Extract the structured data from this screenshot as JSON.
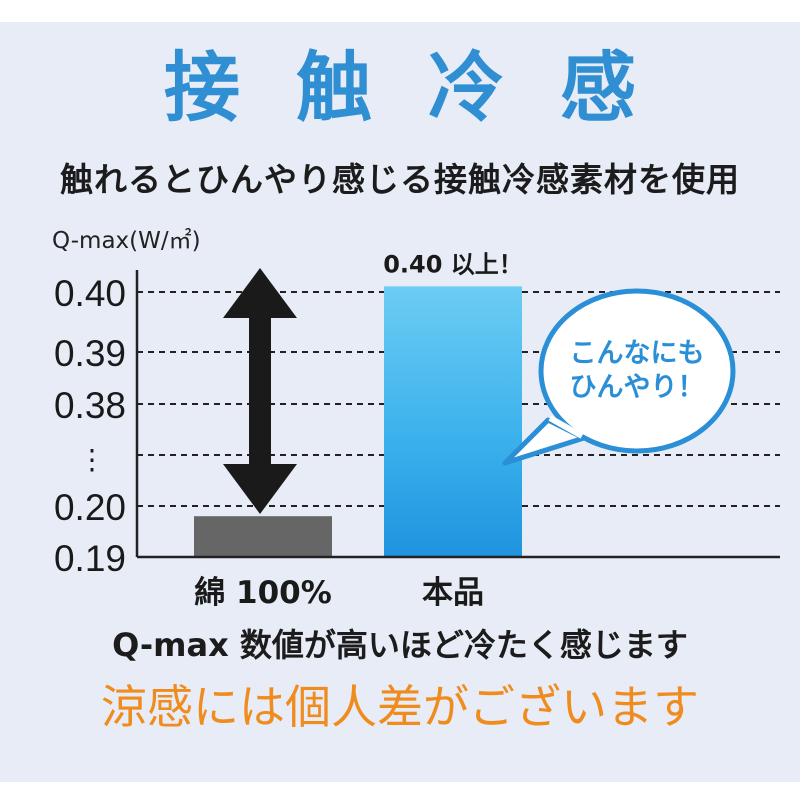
{
  "header": {
    "title": "接触冷感",
    "subtitle": "触れるとひんやり感じる接触冷感素材を使用"
  },
  "chart_data": {
    "type": "bar",
    "ylabel": "Q-max(W/㎡)",
    "y_ticks": [
      "0.40",
      "0.39",
      "0.38",
      "⋮",
      "0.20",
      "0.19"
    ],
    "categories": [
      "綿 100%",
      "本品"
    ],
    "values": [
      0.198,
      0.401
    ],
    "value_labels": [
      "",
      "0.40 以上！"
    ],
    "bar_colors": [
      "#666666",
      "#2aa6e8"
    ],
    "grid": "dashed",
    "y_axis_broken": true,
    "callout": "こんなにもひんやり！"
  },
  "footer": {
    "note": "Q-max 数値が高いほど冷たく感じます",
    "disclaimer": "涼感には個人差がございます"
  },
  "colors": {
    "accent": "#2f8fd2",
    "bar_product": "#2aa6e8",
    "bar_cotton": "#666666",
    "disclaimer": "#f08c1e",
    "background": "#e7ecf7"
  }
}
